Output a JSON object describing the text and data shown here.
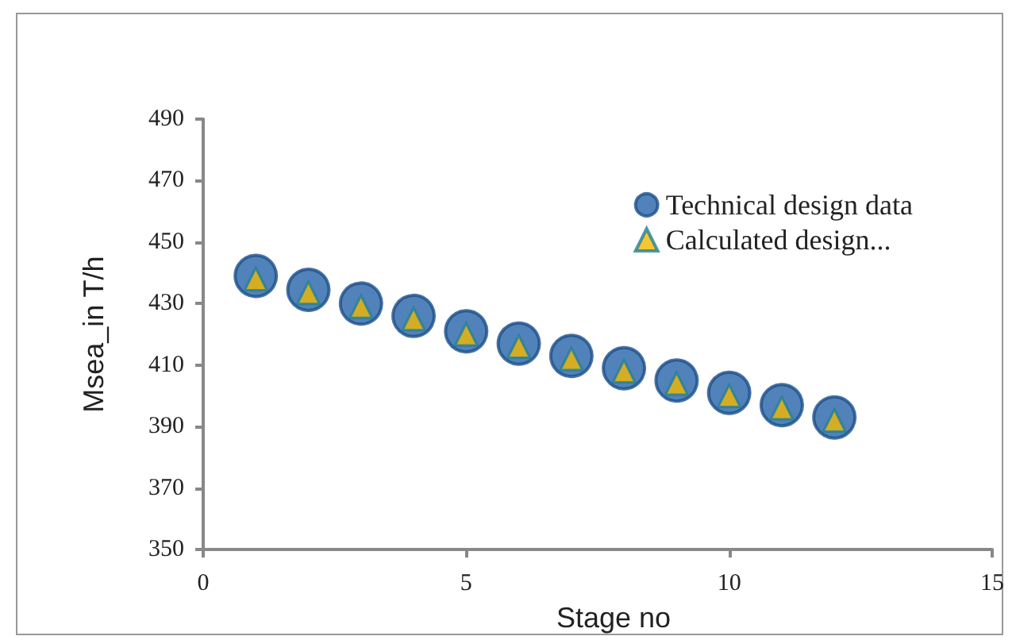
{
  "chart_data": {
    "type": "scatter",
    "xlabel": "Stage no",
    "ylabel": "Msea_in T/h",
    "x": [
      1,
      2,
      3,
      4,
      5,
      6,
      7,
      8,
      9,
      10,
      11,
      12
    ],
    "series": [
      {
        "name": "Technical design data",
        "color": "#2563a8",
        "marker": "circle",
        "values": [
          439,
          434.5,
          430,
          426,
          421,
          417,
          413,
          409,
          405,
          401,
          397,
          393
        ]
      },
      {
        "name": "Calculated design...",
        "color": "#f5b800",
        "marker": "triangle",
        "values": [
          438,
          433.5,
          429,
          425,
          420,
          416,
          412,
          408,
          404,
          400,
          396,
          392
        ]
      }
    ],
    "xlim": [
      0,
      15
    ],
    "xticks": [
      0,
      5,
      10,
      15
    ],
    "ylim": [
      350,
      490
    ],
    "yticks": [
      350,
      370,
      390,
      410,
      430,
      450,
      470,
      490
    ],
    "grid": false,
    "legend": "top right"
  }
}
